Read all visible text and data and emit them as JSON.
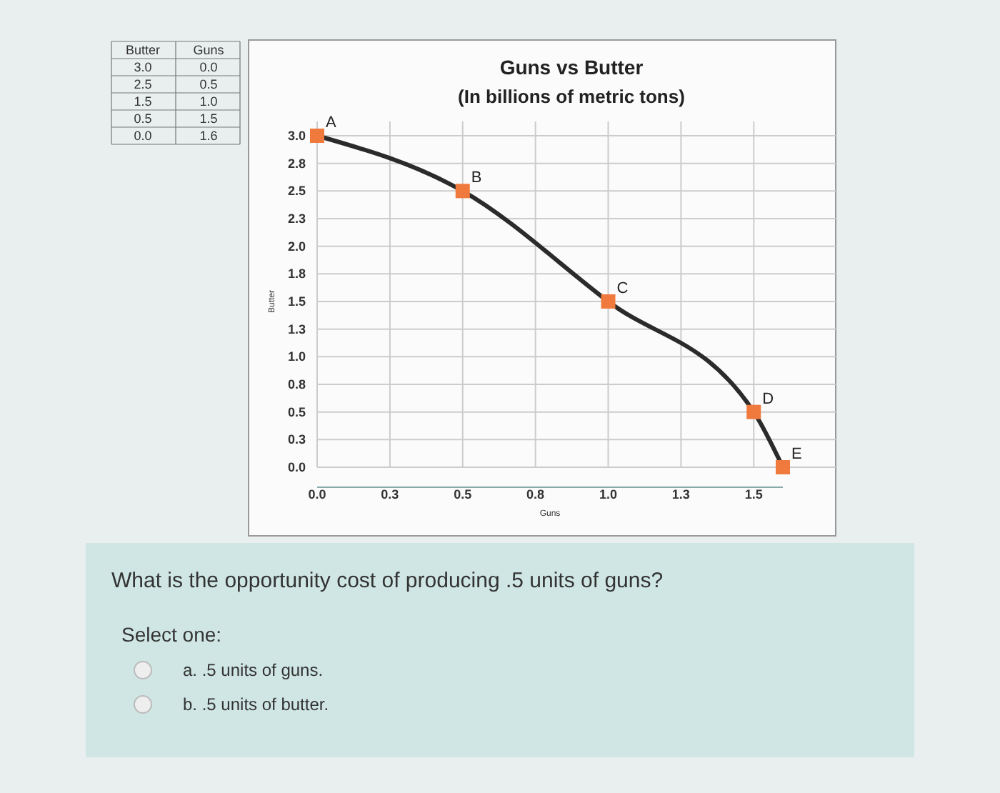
{
  "chart_data": {
    "type": "line",
    "title": "Guns vs Butter",
    "subtitle": "(In billions of metric tons)",
    "xlabel": "Guns",
    "ylabel": "Butter",
    "x": [
      0,
      0.5,
      1.0,
      1.5,
      1.6
    ],
    "series": [
      {
        "color": "#2b2b2b",
        "values": [
          3.0,
          2.5,
          1.5,
          0.5,
          0.0
        ],
        "marker": "none"
      },
      {
        "type": "scatter",
        "color": "#f07a3e",
        "values": [
          3.0,
          2.5,
          1.5,
          0.5,
          0.0
        ],
        "marker": "square"
      }
    ],
    "grid": true,
    "xlim": [
      0,
      1.6
    ],
    "xticks": [
      {
        "value": 0,
        "label": "0.0"
      },
      {
        "value": 0.25,
        "label": "0.3"
      },
      {
        "value": 0.5,
        "label": "0.5"
      },
      {
        "value": 0.75,
        "label": "0.8"
      },
      {
        "value": 1.0,
        "label": "1.0"
      },
      {
        "value": 1.25,
        "label": "1.3"
      },
      {
        "value": 1.5,
        "label": "1.5"
      }
    ],
    "ylim": [
      0,
      3.0
    ],
    "yticks": [
      {
        "value": 0,
        "label": "0.0"
      },
      {
        "value": 0.25,
        "label": "0.3"
      },
      {
        "value": 0.5,
        "label": "0.5"
      },
      {
        "value": 0.75,
        "label": "0.8"
      },
      {
        "value": 1.0,
        "label": "1.0"
      },
      {
        "value": 1.25,
        "label": "1.3"
      },
      {
        "value": 1.5,
        "label": "1.5"
      },
      {
        "value": 1.75,
        "label": "1.8"
      },
      {
        "value": 2.0,
        "label": "2.0"
      },
      {
        "value": 2.25,
        "label": "2.3"
      },
      {
        "value": 2.5,
        "label": "2.5"
      },
      {
        "value": 2.75,
        "label": "2.8"
      },
      {
        "value": 3.0,
        "label": "3.0"
      }
    ],
    "annotations": [
      {
        "text": "A",
        "x": 0,
        "y": 3.0
      },
      {
        "text": "B",
        "x": 0.5,
        "y": 2.5
      },
      {
        "text": "C",
        "x": 1.0,
        "y": 1.5
      },
      {
        "text": "D",
        "x": 1.5,
        "y": 0.5
      },
      {
        "text": "E",
        "x": 1.6,
        "y": 0.0
      },
      "What is the opportunity cost of producing .5 units of guns?",
      "Select one:",
      "a. .5 units of guns.",
      "b. .5 units of butter.",
      "3.0",
      "0.0",
      "2.5",
      "0.5",
      "1.5",
      "1.0",
      "0.5",
      "1.5",
      "0.0",
      "1.6"
    ]
  }
}
